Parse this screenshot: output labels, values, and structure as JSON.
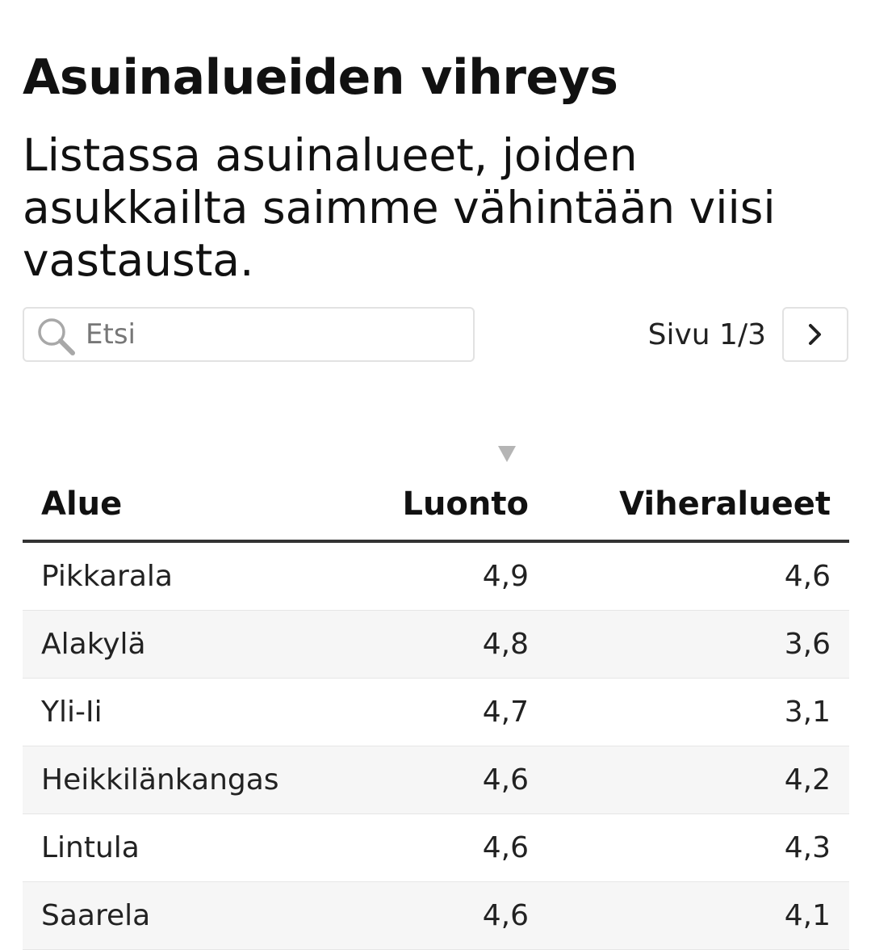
{
  "header": {
    "title": "Asuinalueiden vihreys",
    "subtitle": "Listassa asuinalueet, joiden asukkailta saimme vähintään viisi vastausta."
  },
  "search": {
    "icon": "search-icon",
    "placeholder": "Etsi",
    "value": ""
  },
  "pager": {
    "label": "Sivu 1/3",
    "next_icon": "chevron-right-icon"
  },
  "table": {
    "sorted_column": "Luonto",
    "sort_direction": "descending",
    "columns": [
      "Alue",
      "Luonto",
      "Viheralueet"
    ],
    "rows": [
      [
        "Pikkarala",
        "4,9",
        "4,6"
      ],
      [
        "Alakylä",
        "4,8",
        "3,6"
      ],
      [
        "Yli-Ii",
        "4,7",
        "3,1"
      ],
      [
        "Heikkilänkangas",
        "4,6",
        "4,2"
      ],
      [
        "Lintula",
        "4,6",
        "4,3"
      ],
      [
        "Saarela",
        "4,6",
        "4,1"
      ]
    ]
  },
  "colors": {
    "text": "#111111",
    "border": "#e2e2e2",
    "header_rule": "#333333",
    "row_alt": "#f6f6f6",
    "sort_indicator": "#b5b5b5"
  }
}
